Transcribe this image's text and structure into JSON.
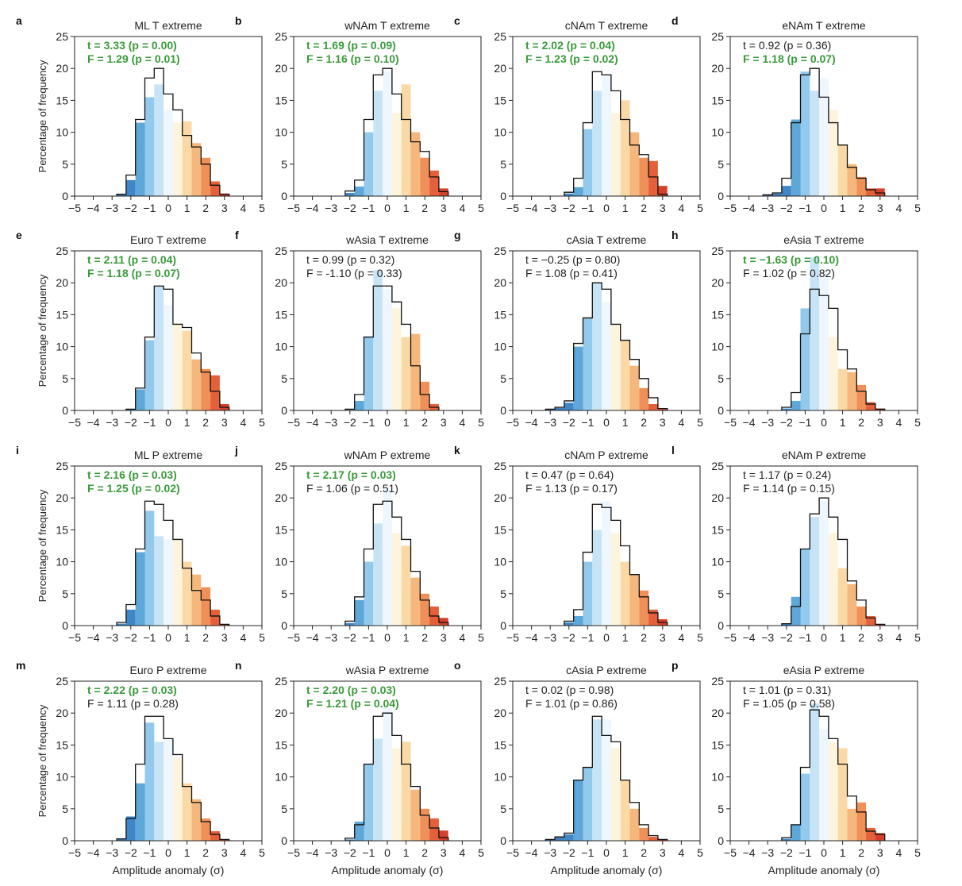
{
  "figure": {
    "ylabel": "Percentage of frequency",
    "xlabel": "Amplitude anomaly (σ)",
    "sig_color": "#3a9a3a",
    "nonsig_color": "#222222"
  },
  "chart_data": [
    {
      "type": "bar",
      "panel": "a",
      "title": "ML T extreme",
      "x": [
        -2.5,
        -2,
        -1.5,
        -1,
        -0.5,
        0,
        0.5,
        1,
        1.5,
        2,
        2.5,
        3
      ],
      "values_bar": [
        0.3,
        2.5,
        11.5,
        15.5,
        17.5,
        13.5,
        11.5,
        11.7,
        8.3,
        6,
        2.3,
        0.4
      ],
      "values_line": [
        0.3,
        3.3,
        12,
        18.5,
        20,
        16,
        13.5,
        9.5,
        7.7,
        5,
        1.7,
        0.3
      ],
      "t": "3.33",
      "t_p": "0.00",
      "F": "1.29",
      "F_p": "0.01",
      "t_sig": true,
      "F_sig": true,
      "xlim": [
        -5,
        5
      ],
      "ylim": [
        0,
        25
      ]
    },
    {
      "type": "bar",
      "panel": "b",
      "title": "wNAm T extreme",
      "x": [
        -2,
        -1.5,
        -1,
        -0.5,
        0,
        0.5,
        1,
        1.5,
        2,
        2.5,
        3
      ],
      "values_bar": [
        0.5,
        1.5,
        10,
        16.5,
        19.5,
        13,
        17.5,
        10,
        6,
        4,
        1.2
      ],
      "values_line": [
        0.8,
        2.5,
        12,
        19,
        20,
        16,
        12,
        8.5,
        7,
        3,
        0.7
      ],
      "t": "1.69",
      "t_p": "0.09",
      "F": "1.16",
      "F_p": "0.10",
      "t_sig": true,
      "F_sig": true,
      "xlim": [
        -5,
        5
      ],
      "ylim": [
        0,
        25
      ]
    },
    {
      "type": "bar",
      "panel": "c",
      "title": "cNAm T extreme",
      "x": [
        -2,
        -1.5,
        -1,
        -0.5,
        0,
        0.5,
        1,
        1.5,
        2,
        2.5,
        3
      ],
      "values_bar": [
        0.4,
        1.4,
        10.5,
        16.5,
        19,
        13,
        15,
        10,
        6,
        5.5,
        1.6
      ],
      "values_line": [
        0.6,
        2.8,
        11.5,
        19.5,
        19,
        16.5,
        12,
        8,
        6.5,
        3,
        0.3
      ],
      "t": "2.02",
      "t_p": "0.04",
      "F": "1.23",
      "F_p": "0.02",
      "t_sig": true,
      "F_sig": true,
      "xlim": [
        -5,
        5
      ],
      "ylim": [
        0,
        25
      ]
    },
    {
      "type": "bar",
      "panel": "d",
      "title": "eNAm T extreme",
      "x": [
        -3,
        -2.5,
        -2,
        -1.5,
        -1,
        -0.5,
        0,
        0.5,
        1,
        1.5,
        2,
        2.5,
        3
      ],
      "values_bar": [
        0.2,
        0.4,
        1.6,
        12,
        19.5,
        16.5,
        18.5,
        13.5,
        8,
        5,
        3,
        1.2,
        1.2
      ],
      "values_line": [
        0.2,
        0.5,
        2.8,
        11.5,
        19,
        20,
        15.5,
        11.5,
        8,
        4.5,
        2.8,
        1,
        0.5
      ],
      "t": "0.92",
      "t_p": "0.36",
      "F": "1.18",
      "F_p": "0.07",
      "t_sig": false,
      "F_sig": true,
      "xlim": [
        -5,
        5
      ],
      "ylim": [
        0,
        25
      ]
    },
    {
      "type": "bar",
      "panel": "e",
      "title": "Euro T extreme",
      "x": [
        -2,
        -1.5,
        -1,
        -0.5,
        0,
        0.5,
        1,
        1.5,
        2,
        2.5,
        3
      ],
      "values_bar": [
        0.2,
        3.3,
        11,
        19.5,
        16.5,
        13.5,
        12.5,
        8,
        6.5,
        5.5,
        1
      ],
      "values_line": [
        0.2,
        3.5,
        11.5,
        19.5,
        19,
        13.5,
        13,
        9,
        6,
        3,
        0.5
      ],
      "t": "2.11",
      "t_p": "0.04",
      "F": "1.18",
      "F_p": "0.07",
      "t_sig": true,
      "F_sig": true,
      "xlim": [
        -5,
        5
      ],
      "ylim": [
        0,
        25
      ]
    },
    {
      "type": "bar",
      "panel": "f",
      "title": "wAsia T extreme",
      "x": [
        -2,
        -1.5,
        -1,
        -0.5,
        0,
        0.5,
        1,
        1.5,
        2,
        2.5
      ],
      "values_bar": [
        0.1,
        1.5,
        11.5,
        22,
        19,
        16,
        11.5,
        12,
        4.5,
        1
      ],
      "values_line": [
        0.2,
        2.5,
        11.5,
        19.5,
        19.5,
        17,
        13.5,
        7,
        2.5,
        0.5
      ],
      "t": "0.99",
      "t_p": "0.32",
      "F": "-1.10",
      "F_p": "0.33",
      "t_sig": false,
      "F_sig": false,
      "xlim": [
        -5,
        5
      ],
      "ylim": [
        0,
        25
      ]
    },
    {
      "type": "bar",
      "panel": "g",
      "title": "cAsia T extreme",
      "x": [
        -3,
        -2.5,
        -2,
        -1.5,
        -1,
        -0.5,
        0,
        0.5,
        1,
        1.5,
        2,
        2.5,
        3
      ],
      "values_bar": [
        0.2,
        0.4,
        1.2,
        10,
        14.5,
        20,
        17,
        13.5,
        11,
        7,
        3.5,
        1,
        0.2
      ],
      "values_line": [
        0.2,
        0.5,
        1.5,
        10.5,
        14.5,
        20,
        19,
        13.5,
        11,
        8,
        5,
        2,
        0.3
      ],
      "t": "−0.25",
      "t_p": "0.80",
      "F": "1.08",
      "F_p": "0.41",
      "t_sig": false,
      "F_sig": false,
      "xlim": [
        -5,
        5
      ],
      "ylim": [
        0,
        25
      ]
    },
    {
      "type": "bar",
      "panel": "h",
      "title": "eAsia T extreme",
      "x": [
        -2,
        -1.5,
        -1,
        -0.5,
        0,
        0.5,
        1,
        1.5,
        2,
        2.5,
        3
      ],
      "values_bar": [
        0.3,
        1.5,
        16,
        24,
        21.5,
        11.5,
        6.5,
        6,
        4,
        1.3,
        0.3
      ],
      "values_line": [
        0.5,
        2.8,
        12,
        19,
        18,
        16,
        9.5,
        6.5,
        3,
        1,
        0.2
      ],
      "t": "−1.63",
      "t_p": "0.10",
      "F": "1.02",
      "F_p": "0.82",
      "t_sig": true,
      "F_sig": false,
      "xlim": [
        -5,
        5
      ],
      "ylim": [
        0,
        25
      ]
    },
    {
      "type": "bar",
      "panel": "i",
      "title": "ML P extreme",
      "x": [
        -2.5,
        -2,
        -1.5,
        -1,
        -0.5,
        0,
        0.5,
        1,
        1.5,
        2,
        2.5,
        3
      ],
      "values_bar": [
        0.3,
        2.5,
        11.5,
        18,
        14,
        13.5,
        13.5,
        10,
        8,
        6,
        2.5,
        0.2
      ],
      "values_line": [
        0.5,
        3.3,
        12,
        19.5,
        19,
        16.5,
        13.5,
        9,
        5.5,
        4,
        1.5,
        0.2
      ],
      "t": "2.16",
      "t_p": "0.03",
      "F": "1.25",
      "F_p": "0.02",
      "t_sig": true,
      "F_sig": true,
      "xlim": [
        -5,
        5
      ],
      "ylim": [
        0,
        25
      ]
    },
    {
      "type": "bar",
      "panel": "j",
      "title": "wNAm P extreme",
      "x": [
        -2,
        -1.5,
        -1,
        -0.5,
        0,
        0.5,
        1,
        1.5,
        2,
        2.5,
        3
      ],
      "values_bar": [
        0.4,
        4,
        10,
        16,
        21.5,
        14.5,
        12.5,
        7.5,
        5,
        3,
        1.2
      ],
      "values_line": [
        0.7,
        4.5,
        12,
        19,
        19.5,
        17,
        13.5,
        8.5,
        4,
        1.5,
        0.5
      ],
      "t": "2.17",
      "t_p": "0.03",
      "F": "1.06",
      "F_p": "0.51",
      "t_sig": true,
      "F_sig": false,
      "xlim": [
        -5,
        5
      ],
      "ylim": [
        0,
        25
      ]
    },
    {
      "type": "bar",
      "panel": "k",
      "title": "cNAm P extreme",
      "x": [
        -2,
        -1.5,
        -1,
        -0.5,
        0,
        0.5,
        1,
        1.5,
        2,
        2.5,
        3
      ],
      "values_bar": [
        0.5,
        1.5,
        10,
        15,
        19.5,
        14.5,
        10,
        8,
        5.5,
        2.5,
        1
      ],
      "values_line": [
        0.7,
        2.5,
        11.5,
        19,
        18.5,
        16.5,
        12.5,
        8,
        4.5,
        2,
        0.5
      ],
      "t": "0.47",
      "t_p": "0.64",
      "F": "1.13",
      "F_p": "0.17",
      "t_sig": false,
      "F_sig": false,
      "xlim": [
        -5,
        5
      ],
      "ylim": [
        0,
        25
      ]
    },
    {
      "type": "bar",
      "panel": "l",
      "title": "eNAm P extreme",
      "x": [
        -2,
        -1.5,
        -1,
        -0.5,
        0,
        0.5,
        1,
        1.5,
        2,
        2.5,
        3
      ],
      "values_bar": [
        0.3,
        4.5,
        12,
        17,
        19.5,
        14.5,
        9,
        6.5,
        3,
        1.5,
        0.2
      ],
      "values_line": [
        0.3,
        3,
        12,
        17.5,
        20,
        17,
        13.5,
        7,
        4,
        1.2,
        0.2
      ],
      "t": "1.17",
      "t_p": "0.24",
      "F": "1.14",
      "F_p": "0.15",
      "t_sig": false,
      "F_sig": false,
      "xlim": [
        -5,
        5
      ],
      "ylim": [
        0,
        25
      ]
    },
    {
      "type": "bar",
      "panel": "m",
      "title": "Euro P extreme",
      "x": [
        -2.5,
        -2,
        -1.5,
        -1,
        -0.5,
        0,
        0.5,
        1,
        1.5,
        2,
        2.5,
        3
      ],
      "values_bar": [
        0.3,
        3.8,
        9,
        18.5,
        15.5,
        16,
        13,
        9,
        6.5,
        3.5,
        1.5,
        0.2
      ],
      "values_line": [
        0.3,
        3.5,
        12,
        19.5,
        19.5,
        16,
        13.5,
        8.5,
        6,
        3,
        1,
        0.2
      ],
      "t": "2.22",
      "t_p": "0.03",
      "F": "1.11",
      "F_p": "0.28",
      "t_sig": true,
      "F_sig": false,
      "xlim": [
        -5,
        5
      ],
      "ylim": [
        0,
        25
      ]
    },
    {
      "type": "bar",
      "panel": "n",
      "title": "wAsia P extreme",
      "x": [
        -2,
        -1.5,
        -1,
        -0.5,
        0,
        0.5,
        1,
        1.5,
        2,
        2.5,
        3
      ],
      "values_bar": [
        0.2,
        3,
        12,
        16,
        21,
        14.5,
        15.5,
        8,
        5,
        3.5,
        1.6
      ],
      "values_line": [
        0.4,
        2.5,
        12,
        19.5,
        20,
        16.5,
        12,
        8.5,
        4,
        2,
        0.5
      ],
      "t": "2.20",
      "t_p": "0.03",
      "F": "1.21",
      "F_p": "0.04",
      "t_sig": true,
      "F_sig": true,
      "xlim": [
        -5,
        5
      ],
      "ylim": [
        0,
        25
      ]
    },
    {
      "type": "bar",
      "panel": "o",
      "title": "cAsia P extreme",
      "x": [
        -3,
        -2.5,
        -2,
        -1.5,
        -1,
        -0.5,
        0,
        0.5,
        1,
        1.5,
        2,
        2.5,
        3
      ],
      "values_bar": [
        0.2,
        0.5,
        1,
        9.5,
        11.5,
        19,
        19,
        14.5,
        9.5,
        5,
        2,
        0.6,
        0.2
      ],
      "values_line": [
        0.2,
        0.6,
        1.2,
        9.5,
        11.5,
        19.5,
        16.5,
        15.5,
        9.5,
        6,
        2.5,
        0.8,
        0.2
      ],
      "t": "0.02",
      "t_p": "0.98",
      "F": "1.01",
      "F_p": "0.86",
      "t_sig": false,
      "F_sig": false,
      "xlim": [
        -5,
        5
      ],
      "ylim": [
        0,
        25
      ]
    },
    {
      "type": "bar",
      "panel": "p",
      "title": "eAsia P extreme",
      "x": [
        -2,
        -1.5,
        -1,
        -0.5,
        0,
        0.5,
        1,
        1.5,
        2,
        2.5,
        3
      ],
      "values_bar": [
        0.3,
        2.5,
        10.5,
        21.5,
        17.5,
        15.5,
        14.5,
        5,
        6,
        2,
        1.2
      ],
      "values_line": [
        0.5,
        2.5,
        11.5,
        20.5,
        19.5,
        16,
        12,
        7,
        4.5,
        1.5,
        1
      ],
      "t": "1.01",
      "t_p": "0.31",
      "F": "1.05",
      "F_p": "0.58",
      "t_sig": false,
      "F_sig": false,
      "xlim": [
        -5,
        5
      ],
      "ylim": [
        0,
        25
      ]
    }
  ]
}
